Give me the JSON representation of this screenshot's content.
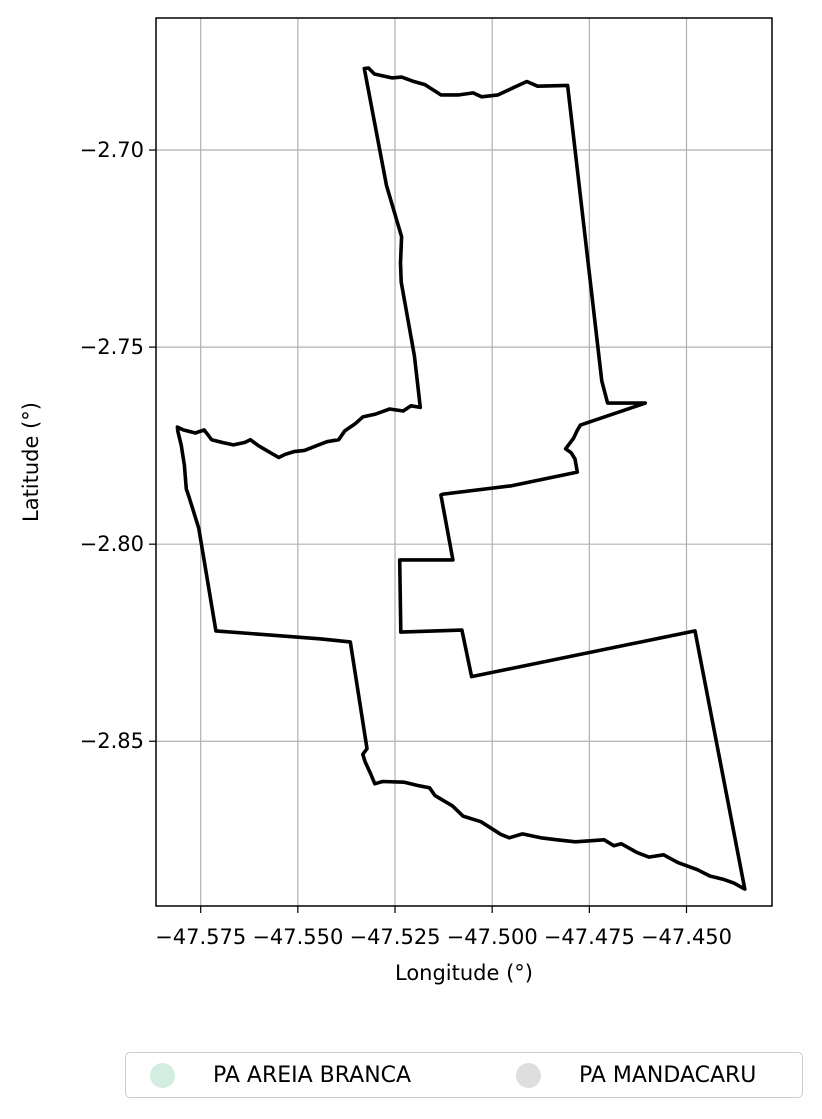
{
  "chart_data": {
    "type": "map",
    "xlabel": "Longitude (°)",
    "ylabel": "Latitude (°)",
    "xlim": [
      -47.5865,
      -47.428
    ],
    "ylim": [
      -2.8918,
      -2.6665
    ],
    "x_ticks": [
      -47.575,
      -47.55,
      -47.525,
      -47.5,
      -47.475,
      -47.45
    ],
    "x_tick_labels": [
      "−47.575",
      "−47.550",
      "−47.525",
      "−47.500",
      "−47.475",
      "−47.450"
    ],
    "y_ticks": [
      -2.7,
      -2.75,
      -2.8,
      -2.85
    ],
    "y_tick_labels": [
      "−2.70",
      "−2.75",
      "−2.80",
      "−2.85"
    ],
    "grid": true,
    "legend_position": "bottom-center",
    "legend": [
      {
        "name": "PA AREIA BRANCA",
        "color": "#d3ede0"
      },
      {
        "name": "PA MANDACARU",
        "color": "#dedede"
      }
    ],
    "boundary_color": "#000000",
    "polygons": [
      {
        "name": "PA AREIA BRANCA",
        "fill": "none",
        "coords": [
          [
            -47.5329,
            -2.6793
          ],
          [
            -47.5318,
            -2.6792
          ],
          [
            -47.5303,
            -2.6807
          ],
          [
            -47.5258,
            -2.6817
          ],
          [
            -47.5233,
            -2.6815
          ],
          [
            -47.5205,
            -2.6825
          ],
          [
            -47.5173,
            -2.6834
          ],
          [
            -47.5132,
            -2.686
          ],
          [
            -47.5085,
            -2.686
          ],
          [
            -47.5049,
            -2.6855
          ],
          [
            -47.5027,
            -2.6865
          ],
          [
            -47.4985,
            -2.686
          ],
          [
            -47.4946,
            -2.6842
          ],
          [
            -47.4911,
            -2.6826
          ],
          [
            -47.4883,
            -2.6838
          ],
          [
            -47.4806,
            -2.6836
          ],
          [
            -47.4718,
            -2.7586
          ],
          [
            -47.4703,
            -2.7642
          ],
          [
            -47.4606,
            -2.7642
          ],
          [
            -47.4773,
            -2.7698
          ],
          [
            -47.4781,
            -2.7711
          ],
          [
            -47.4791,
            -2.7732
          ],
          [
            -47.4811,
            -2.7758
          ],
          [
            -47.4797,
            -2.7768
          ],
          [
            -47.4787,
            -2.7784
          ],
          [
            -47.4781,
            -2.7817
          ],
          [
            -47.495,
            -2.7852
          ],
          [
            -47.5126,
            -2.7873
          ],
          [
            -47.5132,
            -2.7875
          ],
          [
            -47.5101,
            -2.804
          ],
          [
            -47.5238,
            -2.804
          ],
          [
            -47.5235,
            -2.8223
          ],
          [
            -47.5078,
            -2.8218
          ],
          [
            -47.5053,
            -2.8336
          ],
          [
            -47.4478,
            -2.822
          ],
          [
            -47.435,
            -2.8875
          ],
          [
            -47.4378,
            -2.886
          ],
          [
            -47.4406,
            -2.885
          ],
          [
            -47.444,
            -2.8842
          ],
          [
            -47.4472,
            -2.8826
          ],
          [
            -47.4522,
            -2.8808
          ],
          [
            -47.4559,
            -2.8788
          ],
          [
            -47.4597,
            -2.8794
          ],
          [
            -47.4628,
            -2.8782
          ],
          [
            -47.4668,
            -2.876
          ],
          [
            -47.4687,
            -2.8765
          ],
          [
            -47.4712,
            -2.875
          ],
          [
            -47.4786,
            -2.8755
          ],
          [
            -47.4833,
            -2.875
          ],
          [
            -47.4875,
            -2.8745
          ],
          [
            -47.4922,
            -2.8735
          ],
          [
            -47.4956,
            -2.8745
          ],
          [
            -47.4978,
            -2.8736
          ],
          [
            -47.5029,
            -2.8704
          ],
          [
            -47.5075,
            -2.869
          ],
          [
            -47.5102,
            -2.8664
          ],
          [
            -47.5147,
            -2.8638
          ],
          [
            -47.5161,
            -2.8618
          ],
          [
            -47.5193,
            -2.8612
          ],
          [
            -47.5226,
            -2.8604
          ],
          [
            -47.5282,
            -2.8602
          ],
          [
            -47.5302,
            -2.8608
          ],
          [
            -47.5312,
            -2.8584
          ],
          [
            -47.5327,
            -2.8552
          ],
          [
            -47.5333,
            -2.8533
          ],
          [
            -47.5322,
            -2.8519
          ],
          [
            -47.5365,
            -2.8248
          ],
          [
            -47.5444,
            -2.824
          ],
          [
            -47.5711,
            -2.822
          ],
          [
            -47.5755,
            -2.796
          ],
          [
            -47.578,
            -2.788
          ],
          [
            -47.5787,
            -2.786
          ],
          [
            -47.5792,
            -2.78
          ],
          [
            -47.58,
            -2.775
          ],
          [
            -47.5809,
            -2.7713
          ],
          [
            -47.581,
            -2.7703
          ],
          [
            -47.5795,
            -2.771
          ],
          [
            -47.5764,
            -2.7718
          ],
          [
            -47.5741,
            -2.771
          ],
          [
            -47.5722,
            -2.7735
          ],
          [
            -47.5694,
            -2.7742
          ],
          [
            -47.5666,
            -2.7748
          ],
          [
            -47.5637,
            -2.7742
          ],
          [
            -47.5622,
            -2.7735
          ],
          [
            -47.5602,
            -2.775
          ],
          [
            -47.5574,
            -2.7766
          ],
          [
            -47.5549,
            -2.778
          ],
          [
            -47.5532,
            -2.7772
          ],
          [
            -47.551,
            -2.7765
          ],
          [
            -47.5483,
            -2.7762
          ],
          [
            -47.5451,
            -2.775
          ],
          [
            -47.5425,
            -2.774
          ],
          [
            -47.5395,
            -2.7735
          ],
          [
            -47.5379,
            -2.7712
          ],
          [
            -47.5352,
            -2.7694
          ],
          [
            -47.5333,
            -2.7677
          ],
          [
            -47.53,
            -2.767
          ],
          [
            -47.5264,
            -2.7657
          ],
          [
            -47.5229,
            -2.7662
          ],
          [
            -47.5209,
            -2.7649
          ],
          [
            -47.5185,
            -2.7653
          ],
          [
            -47.52,
            -2.7522
          ],
          [
            -47.5234,
            -2.7335
          ],
          [
            -47.5236,
            -2.7286
          ],
          [
            -47.5233,
            -2.722
          ],
          [
            -47.5272,
            -2.709
          ],
          [
            -47.5329,
            -2.6793
          ]
        ]
      }
    ]
  }
}
